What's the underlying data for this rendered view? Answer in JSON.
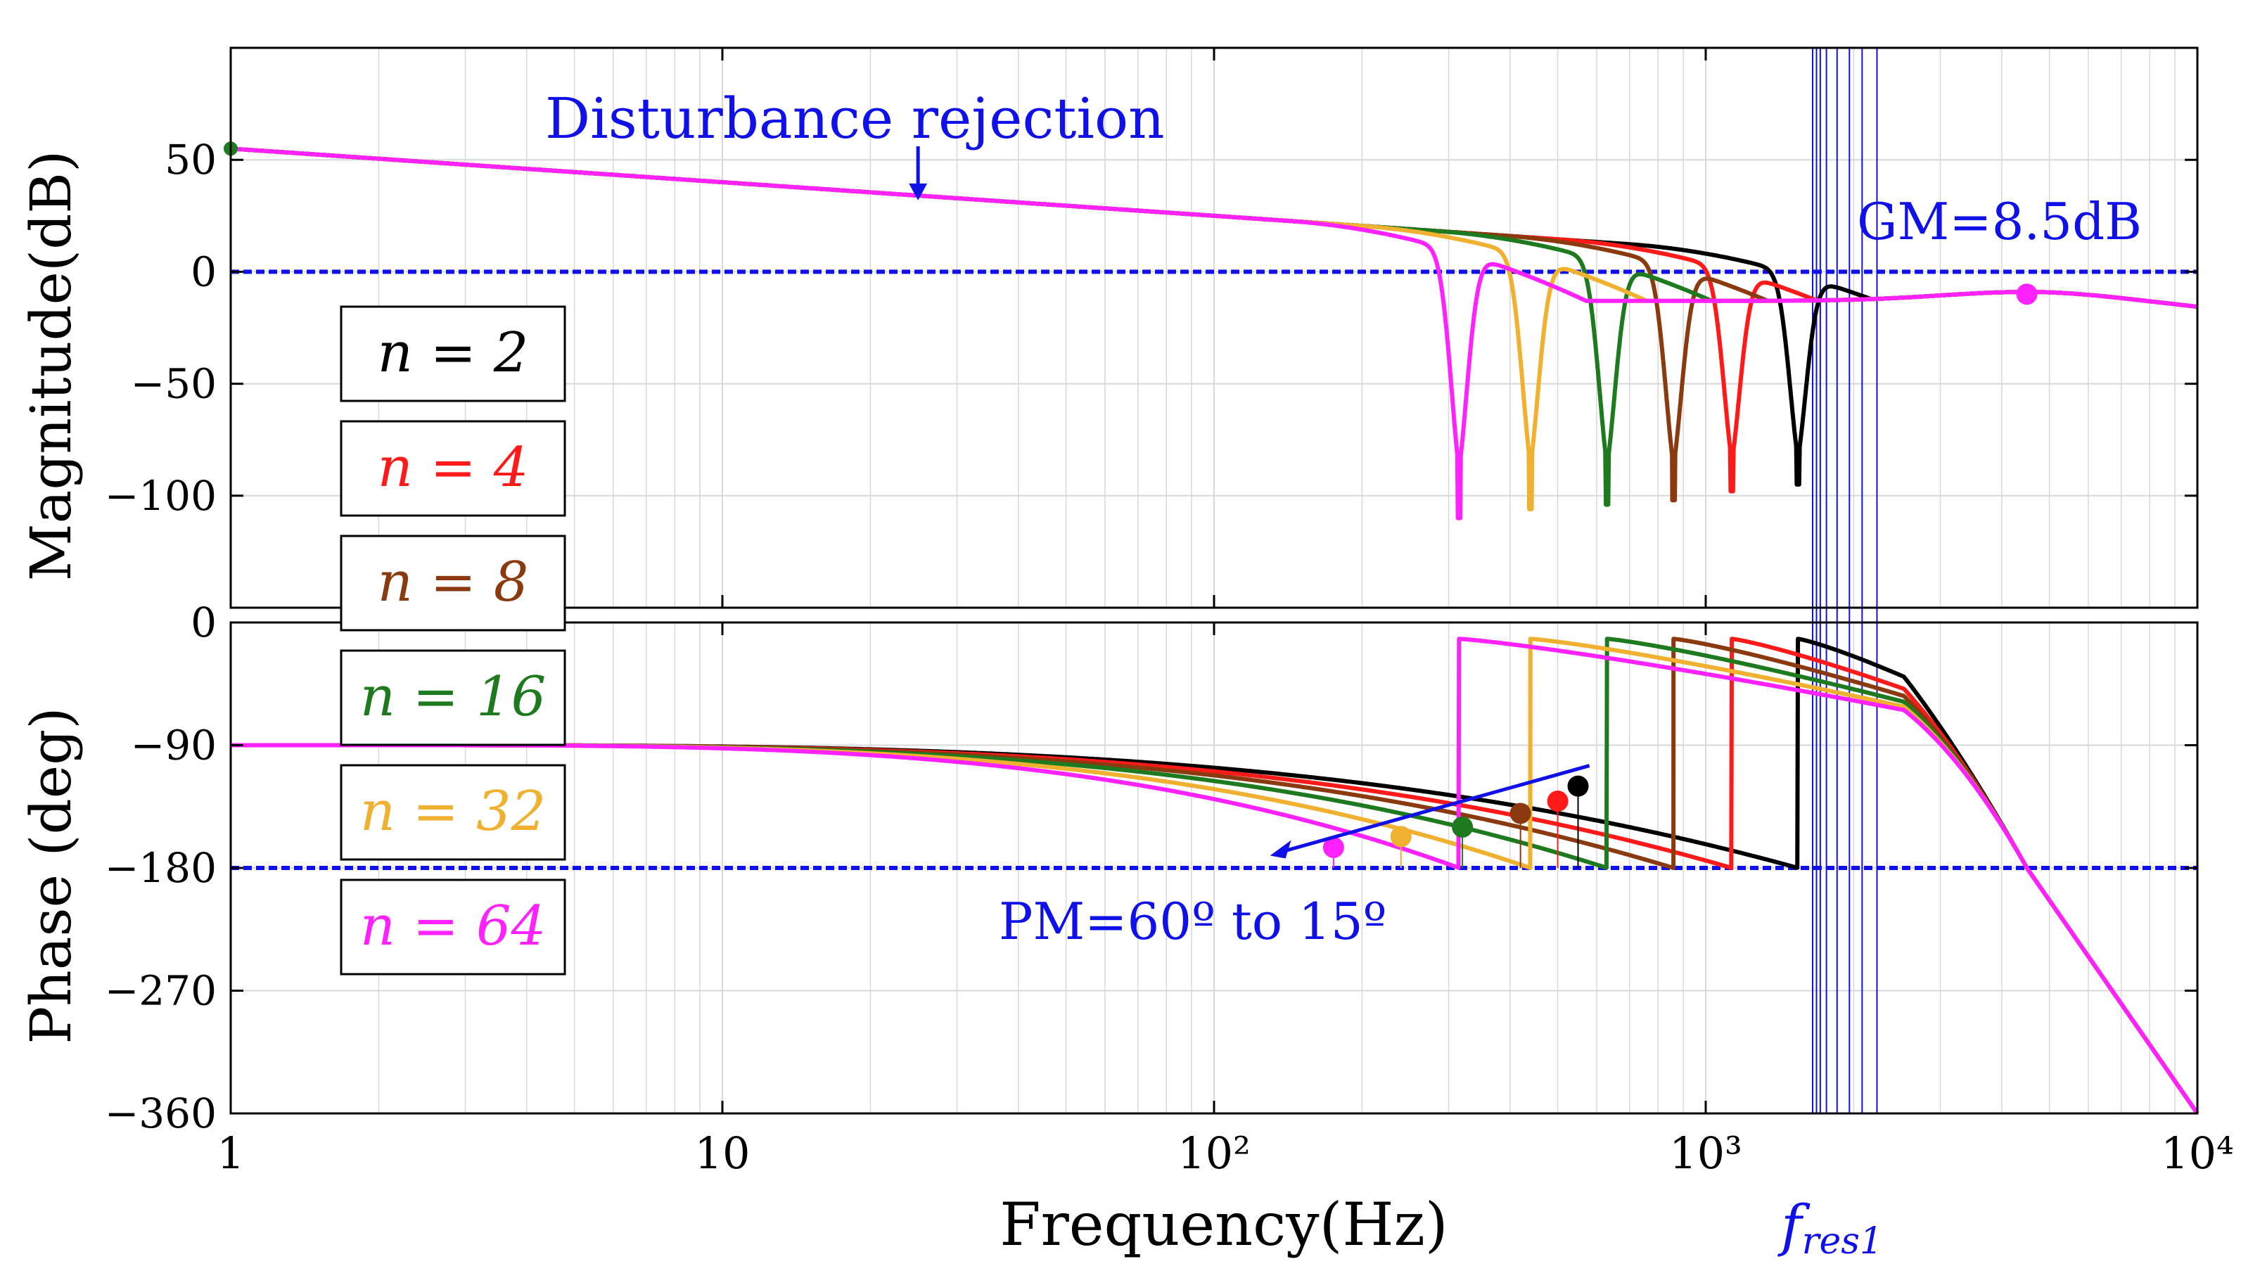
{
  "colors": {
    "n2": "#000000",
    "n4": "#ff1a1a",
    "n8": "#8b3a0f",
    "n16": "#1e7a1e",
    "n32": "#f0b030",
    "n64": "#ff22ff",
    "annotation": "#1010e8",
    "grid": "#d8d8d8"
  },
  "chart_data": {
    "type": "line",
    "title": "",
    "xlabel": "Frequency(Hz)",
    "x_scale": "log",
    "xlim": [
      1,
      10000
    ],
    "x_ticks": [
      {
        "value": 1,
        "label": "1"
      },
      {
        "value": 10,
        "label": "10"
      },
      {
        "value": 100,
        "label": "10²"
      },
      {
        "value": 1000,
        "label": "10³"
      },
      {
        "value": 10000,
        "label": "10⁴"
      }
    ],
    "magnitude": {
      "ylabel": "Magnitude(dB)",
      "ylim": [
        -150,
        100
      ],
      "y_ticks": [
        {
          "value": 50,
          "label": "50"
        },
        {
          "value": 0,
          "label": "0"
        },
        {
          "value": -50,
          "label": "−50"
        },
        {
          "value": -100,
          "label": "−100"
        }
      ],
      "reference_line_db": 0
    },
    "phase": {
      "ylabel": "Phase (deg)",
      "ylim": [
        -360,
        0
      ],
      "y_ticks": [
        {
          "value": 0,
          "label": "0"
        },
        {
          "value": -90,
          "label": "−90"
        },
        {
          "value": -180,
          "label": "−180"
        },
        {
          "value": -270,
          "label": "−270"
        },
        {
          "value": -360,
          "label": "−360"
        }
      ],
      "reference_line_deg": -180
    },
    "series": [
      {
        "name": "n = 2",
        "n": 2,
        "color_key": "n2",
        "notch_hz": 1540,
        "notch_depth_db": -95,
        "crossover_hz": 550,
        "pm_deg": 60
      },
      {
        "name": "n = 4",
        "n": 4,
        "color_key": "n4",
        "notch_hz": 1130,
        "notch_depth_db": -98,
        "crossover_hz": 500,
        "pm_deg": 49
      },
      {
        "name": "n = 8",
        "n": 8,
        "color_key": "n8",
        "notch_hz": 860,
        "notch_depth_db": -102,
        "crossover_hz": 420,
        "pm_deg": 40
      },
      {
        "name": "n = 16",
        "n": 16,
        "color_key": "n16",
        "notch_hz": 630,
        "notch_depth_db": -104,
        "crossover_hz": 320,
        "pm_deg": 30
      },
      {
        "name": "n = 32",
        "n": 32,
        "color_key": "n32",
        "notch_hz": 440,
        "notch_depth_db": -106,
        "crossover_hz": 240,
        "pm_deg": 23
      },
      {
        "name": "n = 64",
        "n": 64,
        "color_key": "n64",
        "notch_hz": 315,
        "notch_depth_db": -110,
        "crossover_hz": 175,
        "pm_deg": 15
      }
    ],
    "resonance_lines_hz": [
      1650,
      1680,
      1710,
      1760,
      1850,
      1960,
      2080,
      2230
    ],
    "gm_marker": {
      "hz": 4500,
      "db": -10
    },
    "annotations": {
      "disturbance": "Disturbance rejection",
      "gain_margin": "GM=8.5dB",
      "phase_margin": "PM=60º to 15º",
      "resonance_label": "f",
      "resonance_subscript": "res1"
    }
  }
}
